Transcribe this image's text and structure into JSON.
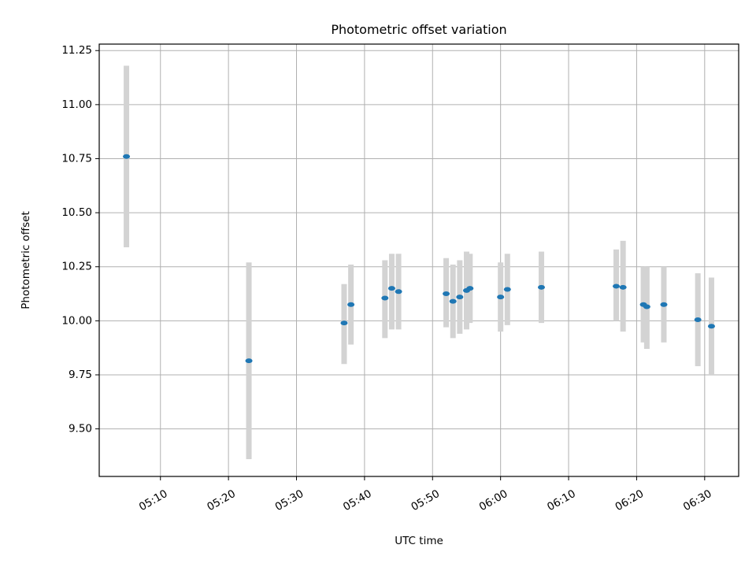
{
  "chart_data": {
    "type": "scatter",
    "title": "Photometric offset variation",
    "xlabel": "UTC time",
    "ylabel": "Photometric offset",
    "x_tick_labels": [
      "05:10",
      "05:20",
      "05:30",
      "05:40",
      "05:50",
      "06:00",
      "06:10",
      "06:20",
      "06:30"
    ],
    "x_tick_minutes": [
      310,
      320,
      330,
      340,
      350,
      360,
      370,
      380,
      390
    ],
    "y_ticks": [
      9.5,
      9.75,
      10.0,
      10.25,
      10.5,
      10.75,
      11.0,
      11.25
    ],
    "xlim": [
      "05:01",
      "06:35"
    ],
    "ylim": [
      9.28,
      11.28
    ],
    "grid": true,
    "colors": {
      "point": "#1f77b4",
      "errorbar": "#d3d3d3",
      "grid": "#b0b0b0"
    },
    "series": [
      {
        "points": [
          {
            "t": "05:05",
            "y": 10.76,
            "lo": 10.34,
            "hi": 11.18
          },
          {
            "t": "05:23",
            "y": 9.815,
            "lo": 9.36,
            "hi": 10.27
          },
          {
            "t": "05:37",
            "y": 9.99,
            "lo": 9.8,
            "hi": 10.17
          },
          {
            "t": "05:38",
            "y": 10.075,
            "lo": 9.89,
            "hi": 10.26
          },
          {
            "t": "05:43",
            "y": 10.105,
            "lo": 9.92,
            "hi": 10.28
          },
          {
            "t": "05:44",
            "y": 10.15,
            "lo": 9.96,
            "hi": 10.31
          },
          {
            "t": "05:45",
            "y": 10.135,
            "lo": 9.96,
            "hi": 10.31
          },
          {
            "t": "05:52",
            "y": 10.125,
            "lo": 9.97,
            "hi": 10.29
          },
          {
            "t": "05:53",
            "y": 10.09,
            "lo": 9.92,
            "hi": 10.26
          },
          {
            "t": "05:54",
            "y": 10.11,
            "lo": 9.94,
            "hi": 10.28
          },
          {
            "t": "05:55",
            "y": 10.14,
            "lo": 9.96,
            "hi": 10.32
          },
          {
            "t": "05:55:30",
            "y": 10.15,
            "lo": 9.99,
            "hi": 10.31
          },
          {
            "t": "06:00",
            "y": 10.11,
            "lo": 9.95,
            "hi": 10.27
          },
          {
            "t": "06:01",
            "y": 10.145,
            "lo": 9.98,
            "hi": 10.31
          },
          {
            "t": "06:06",
            "y": 10.155,
            "lo": 9.99,
            "hi": 10.32
          },
          {
            "t": "06:17",
            "y": 10.16,
            "lo": 10.0,
            "hi": 10.33
          },
          {
            "t": "06:18",
            "y": 10.155,
            "lo": 9.95,
            "hi": 10.37
          },
          {
            "t": "06:21",
            "y": 10.075,
            "lo": 9.9,
            "hi": 10.25
          },
          {
            "t": "06:21:30",
            "y": 10.065,
            "lo": 9.87,
            "hi": 10.25
          },
          {
            "t": "06:24",
            "y": 10.075,
            "lo": 9.9,
            "hi": 10.25
          },
          {
            "t": "06:29",
            "y": 10.005,
            "lo": 9.79,
            "hi": 10.22
          },
          {
            "t": "06:31",
            "y": 9.975,
            "lo": 9.75,
            "hi": 10.2
          }
        ]
      }
    ]
  }
}
